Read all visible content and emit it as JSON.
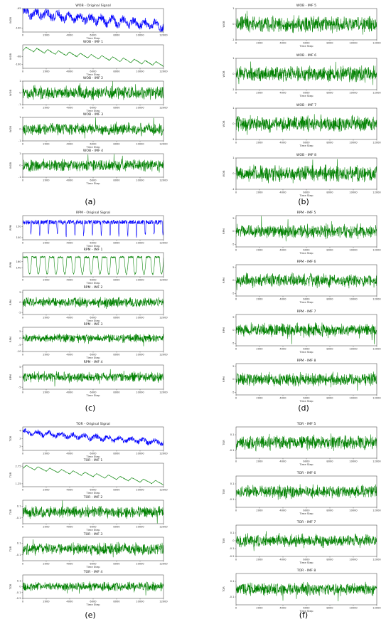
{
  "chart_data": [
    {
      "id": "a",
      "panel_label": "(a)",
      "type": "line",
      "series_kind": "original",
      "color": "#0000ff",
      "title": "WOB - Original Signal",
      "xlabel": "Time Step",
      "ylabel": "WOB",
      "xlim": [
        0,
        12000
      ],
      "ylim": [
        -101,
        -95
      ],
      "yticks": [
        -100,
        -95
      ],
      "xticks": [
        0,
        2000,
        4000,
        6000,
        8000,
        10000,
        12000
      ],
      "n": 12000,
      "trend_start": -96,
      "trend_end": -99.5,
      "amplitude": 1.5,
      "seasonal_periods": 13
    },
    {
      "id": "a",
      "type": "line",
      "series_kind": "imf_trend",
      "color": "#008000",
      "title": "WOB - IMF 1",
      "xlabel": "Time Step",
      "ylabel": "WOB",
      "xlim": [
        0,
        12000
      ],
      "ylim": [
        -101,
        -95
      ],
      "yticks": [
        -100,
        -98
      ],
      "xticks": [
        0,
        2000,
        4000,
        6000,
        8000,
        10000,
        12000
      ],
      "n": 12000,
      "trend_start": -96,
      "trend_end": -100,
      "amplitude": 0.5,
      "seasonal_periods": 13
    },
    {
      "id": "a",
      "type": "line",
      "series_kind": "imf_noise",
      "color": "#008000",
      "title": "WOB - IMF 2",
      "xlabel": "Time Step",
      "ylabel": "WOB",
      "xlim": [
        0,
        12000
      ],
      "ylim": [
        -1,
        1
      ],
      "yticks": [
        -1,
        0,
        1
      ],
      "xticks": [
        0,
        2000,
        4000,
        6000,
        8000,
        10000,
        12000
      ],
      "n": 12000,
      "amplitude": 0.55
    },
    {
      "id": "a",
      "type": "line",
      "series_kind": "imf_noise",
      "color": "#008000",
      "title": "WOB - IMF 3",
      "xlabel": "Time Step",
      "ylabel": "WOB",
      "xlim": [
        0,
        12000
      ],
      "ylim": [
        -1,
        1
      ],
      "yticks": [
        -1,
        0,
        1
      ],
      "xticks": [
        0,
        2000,
        4000,
        6000,
        8000,
        10000,
        12000
      ],
      "n": 12000,
      "amplitude": 0.5
    },
    {
      "id": "a",
      "type": "line",
      "series_kind": "imf_noise",
      "color": "#008000",
      "title": "WOB - IMF 4",
      "xlabel": "Time Step",
      "ylabel": "WOB",
      "xlim": [
        0,
        12000
      ],
      "ylim": [
        -1,
        1
      ],
      "yticks": [
        -1,
        0,
        1
      ],
      "xticks": [
        0,
        2000,
        4000,
        6000,
        8000,
        10000,
        12000
      ],
      "n": 12000,
      "amplitude": 0.5
    },
    {
      "id": "b",
      "panel_label": "(b)",
      "type": "line",
      "series_kind": "imf_noise",
      "color": "#008000",
      "title": "WOB - IMF 5",
      "xlabel": "Time Step",
      "ylabel": "WOB",
      "xlim": [
        0,
        12000
      ],
      "ylim": [
        -1,
        1
      ],
      "yticks": [
        -1,
        0,
        1
      ],
      "xticks": [
        0,
        2000,
        4000,
        6000,
        8000,
        10000,
        12000
      ],
      "n": 12000,
      "amplitude": 0.5
    },
    {
      "id": "b",
      "type": "line",
      "series_kind": "imf_noise",
      "color": "#008000",
      "title": "WOB - IMF 6",
      "xlabel": "Time Step",
      "ylabel": "WOB",
      "xlim": [
        0,
        12000
      ],
      "ylim": [
        -1,
        1
      ],
      "yticks": [
        -1,
        0,
        1
      ],
      "xticks": [
        0,
        2000,
        4000,
        6000,
        8000,
        10000,
        12000
      ],
      "n": 12000,
      "amplitude": 0.5
    },
    {
      "id": "b",
      "type": "line",
      "series_kind": "imf_noise",
      "color": "#008000",
      "title": "WOB - IMF 7",
      "xlabel": "Time Step",
      "ylabel": "WOB",
      "xlim": [
        0,
        12000
      ],
      "ylim": [
        -1,
        1
      ],
      "yticks": [
        -1,
        0,
        1
      ],
      "xticks": [
        0,
        2000,
        4000,
        6000,
        8000,
        10000,
        12000
      ],
      "n": 12000,
      "amplitude": 0.5
    },
    {
      "id": "b",
      "type": "line",
      "series_kind": "imf_noise",
      "color": "#008000",
      "title": "WOB - IMF 8",
      "xlabel": "Time Step",
      "ylabel": "WOB",
      "xlim": [
        0,
        12000
      ],
      "ylim": [
        -1,
        1
      ],
      "yticks": [
        -1,
        0,
        1
      ],
      "xticks": [
        0,
        2000,
        4000,
        6000,
        8000,
        10000,
        12000
      ],
      "n": 12000,
      "amplitude": 0.5
    },
    {
      "id": "c",
      "panel_label": "(c)",
      "type": "line",
      "series_kind": "original",
      "color": "#0000ff",
      "title": "RPM - Original Signal",
      "xlabel": "Time Step",
      "ylabel": "RPM",
      "xlim": [
        0,
        12000
      ],
      "ylim": [
        90,
        200
      ],
      "yticks": [
        100,
        150
      ],
      "xticks": [
        0,
        2000,
        4000,
        6000,
        8000,
        10000,
        12000
      ],
      "n": 12000,
      "trend_start": 170,
      "trend_end": 170,
      "amplitude": 15,
      "dips": 16
    },
    {
      "id": "c",
      "type": "line",
      "series_kind": "imf_dips",
      "color": "#008000",
      "title": "RPM - IMF 1",
      "xlabel": "Time Step",
      "ylabel": "RPM",
      "xlim": [
        0,
        12000
      ],
      "ylim": [
        110,
        190
      ],
      "yticks": [
        140,
        160
      ],
      "xticks": [
        0,
        2000,
        4000,
        6000,
        8000,
        10000,
        12000
      ],
      "n": 12000,
      "trend_start": 175,
      "trend_end": 175,
      "amplitude": 3,
      "dips": 16
    },
    {
      "id": "c",
      "type": "line",
      "series_kind": "imf_noise",
      "color": "#008000",
      "title": "RPM - IMF 2",
      "xlabel": "Time Step",
      "ylabel": "RPM",
      "xlim": [
        0,
        12000
      ],
      "ylim": [
        -6,
        6
      ],
      "yticks": [
        -5,
        0,
        5
      ],
      "xticks": [
        0,
        2000,
        4000,
        6000,
        8000,
        10000,
        12000
      ],
      "n": 12000,
      "amplitude": 2.5
    },
    {
      "id": "c",
      "type": "line",
      "series_kind": "imf_noise",
      "color": "#008000",
      "title": "RPM - IMF 3",
      "xlabel": "Time Step",
      "ylabel": "RPM",
      "xlim": [
        0,
        12000
      ],
      "ylim": [
        -10,
        8
      ],
      "yticks": [
        -10,
        -5,
        0,
        5
      ],
      "xticks": [
        0,
        2000,
        4000,
        6000,
        8000,
        10000,
        12000
      ],
      "n": 12000,
      "amplitude": 3
    },
    {
      "id": "c",
      "type": "line",
      "series_kind": "imf_noise",
      "color": "#008000",
      "title": "RPM - IMF 4",
      "xlabel": "Time Step",
      "ylabel": "RPM",
      "xlim": [
        0,
        12000
      ],
      "ylim": [
        -6,
        6
      ],
      "yticks": [
        -5,
        0,
        5
      ],
      "xticks": [
        0,
        2000,
        4000,
        6000,
        8000,
        10000,
        12000
      ],
      "n": 12000,
      "amplitude": 2.5
    },
    {
      "id": "d",
      "panel_label": "(d)",
      "type": "line",
      "series_kind": "imf_noise",
      "color": "#008000",
      "title": "RPM - IMF 5",
      "xlabel": "Time Step",
      "ylabel": "RPM",
      "xlim": [
        0,
        12000
      ],
      "ylim": [
        -6,
        6
      ],
      "yticks": [
        -5,
        0,
        5
      ],
      "xticks": [
        0,
        2000,
        4000,
        6000,
        8000,
        10000,
        12000
      ],
      "n": 12000,
      "amplitude": 2.5
    },
    {
      "id": "d",
      "type": "line",
      "series_kind": "imf_noise",
      "color": "#008000",
      "title": "RPM - IMF 6",
      "xlabel": "Time Step",
      "ylabel": "RPM",
      "xlim": [
        0,
        12000
      ],
      "ylim": [
        -6,
        6
      ],
      "yticks": [
        -5,
        0,
        5
      ],
      "xticks": [
        0,
        2000,
        4000,
        6000,
        8000,
        10000,
        12000
      ],
      "n": 12000,
      "amplitude": 2.5
    },
    {
      "id": "d",
      "type": "line",
      "series_kind": "imf_noise",
      "color": "#008000",
      "title": "RPM - IMF 7",
      "xlabel": "Time Step",
      "ylabel": "RPM",
      "xlim": [
        0,
        12000
      ],
      "ylim": [
        -6,
        6
      ],
      "yticks": [
        -5,
        0,
        5
      ],
      "xticks": [
        0,
        2000,
        4000,
        6000,
        8000,
        10000,
        12000
      ],
      "n": 12000,
      "amplitude": 2.5
    },
    {
      "id": "d",
      "type": "line",
      "series_kind": "imf_noise",
      "color": "#008000",
      "title": "RPM - IMF 8",
      "xlabel": "Time Step",
      "ylabel": "RPM",
      "xlim": [
        0,
        12000
      ],
      "ylim": [
        -6,
        6
      ],
      "yticks": [
        -5,
        0,
        5
      ],
      "xticks": [
        0,
        2000,
        4000,
        6000,
        8000,
        10000,
        12000
      ],
      "n": 12000,
      "amplitude": 2.5
    },
    {
      "id": "e",
      "panel_label": "(e)",
      "type": "line",
      "series_kind": "original",
      "color": "#0000ff",
      "title": "TOR - Original Signal",
      "xlabel": "Time Step",
      "ylabel": "TOR",
      "xlim": [
        0,
        12000
      ],
      "ylim": [
        1.5,
        4.5
      ],
      "yticks": [
        2.0,
        3.0,
        4.0
      ],
      "xticks": [
        0,
        2000,
        4000,
        6000,
        8000,
        10000,
        12000
      ],
      "n": 12000,
      "trend_start": 3.8,
      "trend_end": 2.5,
      "amplitude": 0.45,
      "seasonal_periods": 12
    },
    {
      "id": "e",
      "type": "line",
      "series_kind": "imf_trend",
      "color": "#008000",
      "title": "TOR - IMF 1",
      "xlabel": "Time Step",
      "ylabel": "TOR",
      "xlim": [
        0,
        12000
      ],
      "ylim": [
        1.0,
        3.0
      ],
      "yticks": [
        1.25,
        2.75
      ],
      "xticks": [
        0,
        2000,
        4000,
        6000,
        8000,
        10000,
        12000
      ],
      "n": 12000,
      "trend_start": 2.7,
      "trend_end": 1.3,
      "amplitude": 0.15,
      "seasonal_periods": 12
    },
    {
      "id": "e",
      "type": "line",
      "series_kind": "imf_noise",
      "color": "#008000",
      "title": "TOR - IMF 2",
      "xlabel": "Time Step",
      "ylabel": "TOR",
      "xlim": [
        0,
        12000
      ],
      "ylim": [
        -0.2,
        0.2
      ],
      "yticks": [
        -0.1,
        0.1
      ],
      "xticks": [
        0,
        2000,
        4000,
        6000,
        8000,
        10000,
        12000
      ],
      "n": 12000,
      "amplitude": 0.1
    },
    {
      "id": "e",
      "type": "line",
      "series_kind": "imf_noise",
      "color": "#008000",
      "title": "TOR - IMF 3",
      "xlabel": "Time Step",
      "ylabel": "TOR",
      "xlim": [
        0,
        12000
      ],
      "ylim": [
        -0.2,
        0.2
      ],
      "yticks": [
        -0.1,
        0.1
      ],
      "xticks": [
        0,
        2000,
        4000,
        6000,
        8000,
        10000,
        12000
      ],
      "n": 12000,
      "amplitude": 0.1
    },
    {
      "id": "e",
      "type": "line",
      "series_kind": "imf_noise",
      "color": "#008000",
      "title": "TOR - IMF 4",
      "xlabel": "Time Step",
      "ylabel": "TOR",
      "xlim": [
        0,
        12000
      ],
      "ylim": [
        -0.2,
        0.2
      ],
      "yticks": [
        -0.2,
        -0.1,
        0.0,
        0.1
      ],
      "xticks": [
        0,
        2000,
        4000,
        6000,
        8000,
        10000,
        12000
      ],
      "n": 12000,
      "amplitude": 0.08
    },
    {
      "id": "f",
      "panel_label": "(f)",
      "type": "line",
      "series_kind": "imf_noise",
      "color": "#008000",
      "title": "TOR - IMF 5",
      "xlabel": "Time Step",
      "ylabel": "TOR",
      "xlim": [
        0,
        12000
      ],
      "ylim": [
        -0.2,
        0.2
      ],
      "yticks": [
        -0.1,
        0.1
      ],
      "xticks": [
        0,
        2000,
        4000,
        6000,
        8000,
        10000,
        12000
      ],
      "n": 12000,
      "amplitude": 0.09
    },
    {
      "id": "f",
      "type": "line",
      "series_kind": "imf_noise",
      "color": "#008000",
      "title": "TOR - IMF 6",
      "xlabel": "Time Step",
      "ylabel": "TOR",
      "xlim": [
        0,
        12000
      ],
      "ylim": [
        -0.2,
        0.2
      ],
      "yticks": [
        -0.1,
        0.1
      ],
      "xticks": [
        0,
        2000,
        4000,
        6000,
        8000,
        10000,
        12000
      ],
      "n": 12000,
      "amplitude": 0.08
    },
    {
      "id": "f",
      "type": "line",
      "series_kind": "imf_noise",
      "color": "#008000",
      "title": "TOR - IMF 7",
      "xlabel": "Time Step",
      "ylabel": "TOR",
      "xlim": [
        0,
        12000
      ],
      "ylim": [
        -0.2,
        0.2
      ],
      "yticks": [
        -0.2,
        -0.1,
        0.0,
        0.1
      ],
      "xticks": [
        0,
        2000,
        4000,
        6000,
        8000,
        10000,
        12000
      ],
      "n": 12000,
      "amplitude": 0.08
    },
    {
      "id": "f",
      "type": "line",
      "series_kind": "imf_noise",
      "color": "#008000",
      "title": "TOR - IMF 8",
      "xlabel": "Time Step",
      "ylabel": "TOR",
      "xlim": [
        0,
        12000
      ],
      "ylim": [
        -0.2,
        0.2
      ],
      "yticks": [
        -0.1,
        0.1
      ],
      "xticks": [
        0,
        2000,
        4000,
        6000,
        8000,
        10000,
        12000
      ],
      "n": 12000,
      "amplitude": 0.08
    }
  ]
}
